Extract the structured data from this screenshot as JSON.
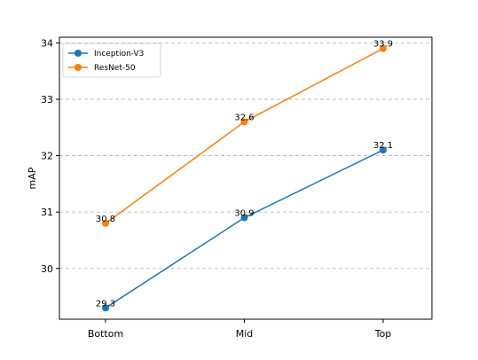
{
  "chart_data": {
    "type": "line",
    "categories": [
      "Bottom",
      "Mid",
      "Top"
    ],
    "series": [
      {
        "name": "Inception-V3",
        "values": [
          29.3,
          30.9,
          32.1
        ],
        "color": "#1f77b4"
      },
      {
        "name": "ResNet-50",
        "values": [
          30.8,
          32.6,
          33.9
        ],
        "color": "#ff7f0e"
      }
    ],
    "ylabel": "mAP",
    "ylim": [
      29.1,
      34.1
    ],
    "yticks": [
      30,
      31,
      32,
      33,
      34
    ],
    "grid": "horizontal-dashed",
    "legend_position": "top-left"
  }
}
